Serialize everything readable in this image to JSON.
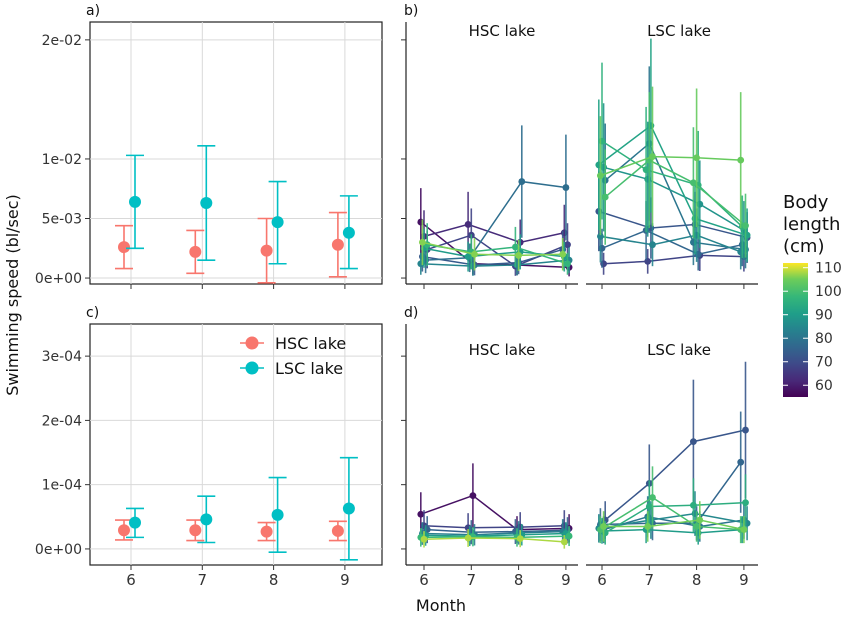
{
  "chart_data": [
    {
      "panel": "a)",
      "type": "scatter",
      "x": [
        6,
        7,
        8,
        9
      ],
      "ylim": [
        -0.0005,
        0.0215
      ],
      "yticks": [
        "0e+00",
        "5e-03",
        "1e-02",
        "2e-02"
      ],
      "ytick_values": [
        0,
        0.005,
        0.01,
        0.02
      ],
      "series": [
        {
          "name": "HSC lake",
          "color": "#F8766D",
          "values": [
            0.0026,
            0.0022,
            0.0023,
            0.0028
          ],
          "lower": [
            0.0008,
            0.0004,
            -0.0004,
            0.0001
          ],
          "upper": [
            0.0044,
            0.004,
            0.005,
            0.0055
          ]
        },
        {
          "name": "LSC lake",
          "color": "#00BFC4",
          "values": [
            0.0064,
            0.0063,
            0.0047,
            0.0038
          ],
          "lower": [
            0.0025,
            0.0015,
            0.0012,
            0.0008
          ],
          "upper": [
            0.0103,
            0.0111,
            0.0081,
            0.0069
          ]
        }
      ]
    },
    {
      "panel": "c)",
      "type": "scatter",
      "x": [
        6,
        7,
        8,
        9
      ],
      "ylim": [
        -2.5e-05,
        0.00035
      ],
      "yticks": [
        "0e+00",
        "1e-04",
        "2e-04",
        "3e-04"
      ],
      "ytick_values": [
        0,
        0.0001,
        0.0002,
        0.0003
      ],
      "series": [
        {
          "name": "HSC lake",
          "color": "#F8766D",
          "values": [
            2.9e-05,
            2.9e-05,
            2.7e-05,
            2.8e-05
          ],
          "lower": [
            1.4e-05,
            1.3e-05,
            1.3e-05,
            1.3e-05
          ],
          "upper": [
            4.5e-05,
            4.5e-05,
            4.1e-05,
            4.3e-05
          ]
        },
        {
          "name": "LSC lake",
          "color": "#00BFC4",
          "values": [
            4.1e-05,
            4.6e-05,
            5.3e-05,
            6.3e-05
          ],
          "lower": [
            1.8e-05,
            1e-05,
            -5e-06,
            -1.7e-05
          ],
          "upper": [
            6.3e-05,
            8.2e-05,
            0.000111,
            0.000142
          ]
        }
      ]
    },
    {
      "panel": "b)",
      "type": "line",
      "x": [
        6,
        7,
        8,
        9
      ],
      "facets": [
        "HSC lake",
        "LSC lake"
      ],
      "ylim": [
        -0.0005,
        0.0215
      ],
      "series": [
        {
          "facet": "HSC lake",
          "body_length": 58,
          "values": [
            0.0047,
            0.0012,
            0.0011,
            0.0009
          ]
        },
        {
          "facet": "HSC lake",
          "body_length": 63,
          "values": [
            0.0035,
            0.0045,
            0.003,
            0.0038
          ]
        },
        {
          "facet": "HSC lake",
          "body_length": 68,
          "values": [
            0.0024,
            0.0036,
            0.001,
            0.0028
          ]
        },
        {
          "facet": "HSC lake",
          "body_length": 73,
          "values": [
            0.0018,
            0.0011,
            0.0013,
            0.0024
          ]
        },
        {
          "facet": "HSC lake",
          "body_length": 78,
          "values": [
            0.0015,
            0.0017,
            0.0081,
            0.0076
          ]
        },
        {
          "facet": "HSC lake",
          "body_length": 84,
          "values": [
            0.0012,
            0.001,
            0.0011,
            0.0015
          ]
        },
        {
          "facet": "HSC lake",
          "body_length": 90,
          "values": [
            0.0025,
            0.0018,
            0.0022,
            0.0018
          ]
        },
        {
          "facet": "HSC lake",
          "body_length": 97,
          "values": [
            0.0028,
            0.0022,
            0.0026,
            0.0012
          ]
        },
        {
          "facet": "HSC lake",
          "body_length": 106,
          "values": [
            0.003,
            0.002,
            0.0019,
            0.002
          ]
        },
        {
          "facet": "LSC lake",
          "body_length": 68,
          "values": [
            0.0012,
            0.0014,
            0.0019,
            0.0018
          ]
        },
        {
          "facet": "LSC lake",
          "body_length": 72,
          "values": [
            0.0056,
            0.0042,
            0.0045,
            0.0034
          ]
        },
        {
          "facet": "LSC lake",
          "body_length": 76,
          "values": [
            0.0025,
            0.004,
            0.002,
            0.0028
          ]
        },
        {
          "facet": "LSC lake",
          "body_length": 80,
          "values": [
            0.0082,
            0.0113,
            0.003,
            0.0024
          ]
        },
        {
          "facet": "LSC lake",
          "body_length": 84,
          "values": [
            0.0035,
            0.0028,
            0.0036,
            0.0022
          ]
        },
        {
          "facet": "LSC lake",
          "body_length": 88,
          "values": [
            0.0093,
            0.0083,
            0.0062,
            0.004
          ]
        },
        {
          "facet": "LSC lake",
          "body_length": 92,
          "values": [
            0.0095,
            0.0128,
            0.005,
            0.0036
          ]
        },
        {
          "facet": "LSC lake",
          "body_length": 96,
          "values": [
            0.0115,
            0.0091,
            0.0078,
            0.0043
          ]
        },
        {
          "facet": "LSC lake",
          "body_length": 100,
          "values": [
            0.0068,
            0.0099,
            0.008,
            0.0044
          ]
        },
        {
          "facet": "LSC lake",
          "body_length": 104,
          "values": [
            0.0086,
            0.0102,
            0.0101,
            0.0099
          ]
        }
      ]
    },
    {
      "panel": "d)",
      "type": "line",
      "x": [
        6,
        7,
        8,
        9
      ],
      "facets": [
        "HSC lake",
        "LSC lake"
      ],
      "ylim": [
        -2.5e-05,
        0.00035
      ],
      "series": [
        {
          "facet": "HSC lake",
          "body_length": 58,
          "values": [
            5.4e-05,
            8.3e-05,
            3e-05,
            3.2e-05
          ]
        },
        {
          "facet": "HSC lake",
          "body_length": 68,
          "values": [
            3.6e-05,
            3.3e-05,
            3.4e-05,
            3.6e-05
          ]
        },
        {
          "facet": "HSC lake",
          "body_length": 75,
          "values": [
            3e-05,
            2.6e-05,
            2.7e-05,
            2.9e-05
          ]
        },
        {
          "facet": "HSC lake",
          "body_length": 82,
          "values": [
            2.4e-05,
            2.2e-05,
            2.5e-05,
            2.7e-05
          ]
        },
        {
          "facet": "HSC lake",
          "body_length": 90,
          "values": [
            2.1e-05,
            2e-05,
            2.2e-05,
            2.4e-05
          ]
        },
        {
          "facet": "HSC lake",
          "body_length": 98,
          "values": [
            1.8e-05,
            1.9e-05,
            1.8e-05,
            2e-05
          ]
        },
        {
          "facet": "HSC lake",
          "body_length": 108,
          "values": [
            1.5e-05,
            1.7e-05,
            1.6e-05,
            1.1e-05
          ]
        },
        {
          "facet": "LSC lake",
          "body_length": 72,
          "values": [
            4.5e-05,
            0.000102,
            0.000167,
            0.000185
          ]
        },
        {
          "facet": "LSC lake",
          "body_length": 76,
          "values": [
            3.8e-05,
            4e-05,
            4e-05,
            0.000135
          ]
        },
        {
          "facet": "LSC lake",
          "body_length": 80,
          "values": [
            3e-05,
            5e-05,
            3.5e-05,
            4.5e-05
          ]
        },
        {
          "facet": "LSC lake",
          "body_length": 85,
          "values": [
            3.2e-05,
            4.5e-05,
            5.5e-05,
            4e-05
          ]
        },
        {
          "facet": "LSC lake",
          "body_length": 90,
          "values": [
            2.8e-05,
            3e-05,
            2.5e-05,
            3e-05
          ]
        },
        {
          "facet": "LSC lake",
          "body_length": 95,
          "values": [
            2.5e-05,
            6.6e-05,
            6.8e-05,
            7.2e-05
          ]
        },
        {
          "facet": "LSC lake",
          "body_length": 100,
          "values": [
            3e-05,
            8e-05,
            3.5e-05,
            3e-05
          ]
        },
        {
          "facet": "LSC lake",
          "body_length": 105,
          "values": [
            3.5e-05,
            3.5e-05,
            4.5e-05,
            3e-05
          ]
        }
      ]
    }
  ],
  "labels": {
    "panel_a": "a)",
    "panel_b": "b)",
    "panel_c": "c)",
    "panel_d": "d)",
    "facet_hsc": "HSC lake",
    "facet_lsc": "LSC lake",
    "xlabel": "Month",
    "ylabel": "Swimming speed (bl/sec)",
    "xticks": [
      "6",
      "7",
      "8",
      "9"
    ]
  },
  "legend_group": {
    "items": [
      {
        "label": "HSC lake",
        "color": "#F8766D"
      },
      {
        "label": "LSC lake",
        "color": "#00BFC4"
      }
    ]
  },
  "colorbar": {
    "title_line1": "Body",
    "title_line2": "length",
    "title_line3": "(cm)",
    "min": 55,
    "max": 112,
    "ticks": [
      "110",
      "100",
      "90",
      "80",
      "70",
      "60"
    ],
    "tick_values": [
      110,
      100,
      90,
      80,
      70,
      60
    ],
    "palette": "viridis"
  }
}
